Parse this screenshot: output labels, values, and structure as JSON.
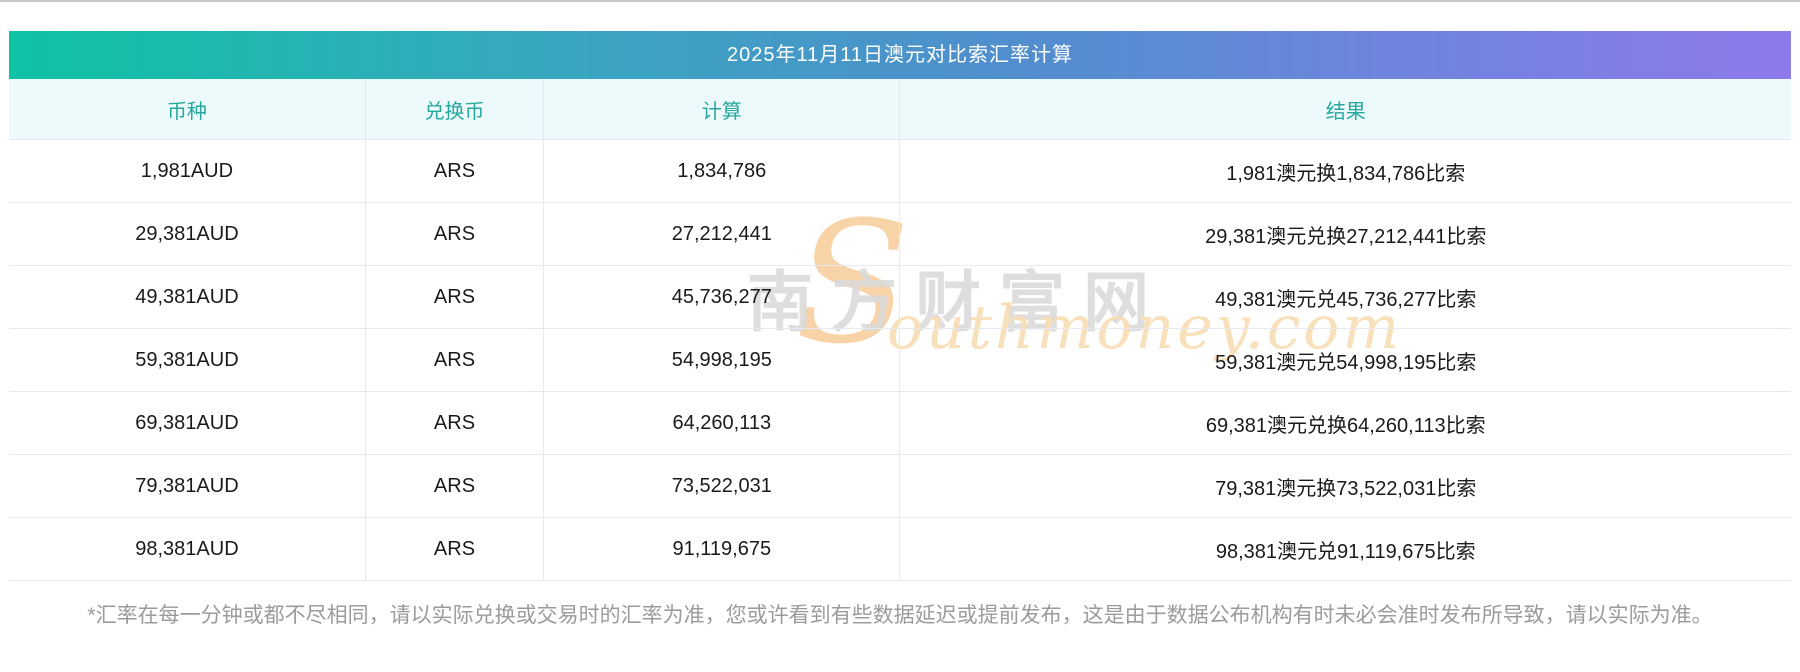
{
  "header": {
    "title": "2025年11月11日澳元对比索汇率计算"
  },
  "table": {
    "columns": {
      "currency": "币种",
      "exchange": "兑换币",
      "calc": "计算",
      "result": "结果"
    },
    "rows": [
      {
        "amount": "1,981AUD",
        "unit": "ARS",
        "calc": "1,834,786",
        "result": "1,981澳元换1,834,786比索"
      },
      {
        "amount": "29,381AUD",
        "unit": "ARS",
        "calc": "27,212,441",
        "result": "29,381澳元兑换27,212,441比索"
      },
      {
        "amount": "49,381AUD",
        "unit": "ARS",
        "calc": "45,736,277",
        "result": "49,381澳元兑45,736,277比索"
      },
      {
        "amount": "59,381AUD",
        "unit": "ARS",
        "calc": "54,998,195",
        "result": "59,381澳元兑54,998,195比索"
      },
      {
        "amount": "69,381AUD",
        "unit": "ARS",
        "calc": "64,260,113",
        "result": "69,381澳元兑换64,260,113比索"
      },
      {
        "amount": "79,381AUD",
        "unit": "ARS",
        "calc": "73,522,031",
        "result": "79,381澳元换73,522,031比索"
      },
      {
        "amount": "98,381AUD",
        "unit": "ARS",
        "calc": "91,119,675",
        "result": "98,381澳元兑91,119,675比索"
      }
    ]
  },
  "watermark": {
    "cn": "南方财富网",
    "en_initial": "S",
    "en_rest": "outhmoney.com"
  },
  "footnote": "*汇率在每一分钟或都不尽相同，请以实际兑换或交易时的汇率为准，您或许看到有些数据延迟或提前发布，这是由于数据公布机构有时未必会准时发布所导致，请以实际为准。",
  "colors": {
    "title_gradient_left": "#0ec2a4",
    "title_gradient_mid": "#4f8fcd",
    "title_gradient_right": "#8d7aeb",
    "title_text": "#ffffff",
    "header_row_bg": "#ecfafc",
    "header_row_text": "#27a89e",
    "row_border": "#e6eaf0",
    "cell_text": "#1a1a1a",
    "footnote_text": "#9b9b9b",
    "watermark_gray": "#d9d9d9",
    "watermark_orange": "#f6c992"
  },
  "chart_data": {
    "type": "table",
    "title": "2025年11月11日澳元对比索汇率计算",
    "columns": [
      "币种",
      "兑换币",
      "计算",
      "结果"
    ],
    "rows": [
      [
        "1,981AUD",
        "ARS",
        "1,834,786",
        "1,981澳元换1,834,786比索"
      ],
      [
        "29,381AUD",
        "ARS",
        "27,212,441",
        "29,381澳元兑换27,212,441比索"
      ],
      [
        "49,381AUD",
        "ARS",
        "45,736,277",
        "49,381澳元兑45,736,277比索"
      ],
      [
        "59,381AUD",
        "ARS",
        "54,998,195",
        "59,381澳元兑54,998,195比索"
      ],
      [
        "69,381AUD",
        "ARS",
        "64,260,113",
        "69,381澳元兑换64,260,113比索"
      ],
      [
        "79,381AUD",
        "ARS",
        "73,522,031",
        "79,381澳元换73,522,031比索"
      ],
      [
        "98,381AUD",
        "ARS",
        "91,119,675",
        "98,381澳元兑91,119,675比索"
      ]
    ]
  }
}
